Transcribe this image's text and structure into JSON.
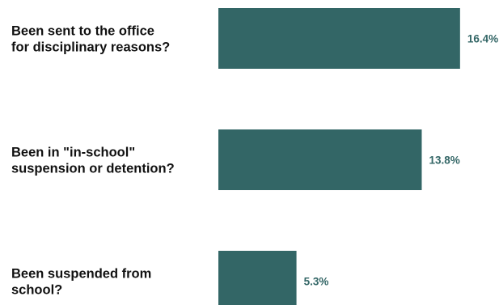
{
  "chart_data": {
    "type": "bar",
    "orientation": "horizontal",
    "categories": [
      [
        "Been sent to the office",
        "for disciplinary reasons?"
      ],
      [
        "Been in \"in-school\"",
        "suspension or detention?"
      ],
      [
        "Been suspended from",
        "school?"
      ]
    ],
    "values": [
      16.4,
      13.8,
      5.3
    ],
    "value_labels": [
      "16.4%",
      "13.8%",
      "5.3%"
    ],
    "xlim": [
      0,
      18
    ],
    "grid": false,
    "title": "",
    "xlabel": "",
    "ylabel": ""
  },
  "colors": {
    "bar": "#336666",
    "value_label": "#336666",
    "category_label": "#111111",
    "background": "#ffffff"
  }
}
